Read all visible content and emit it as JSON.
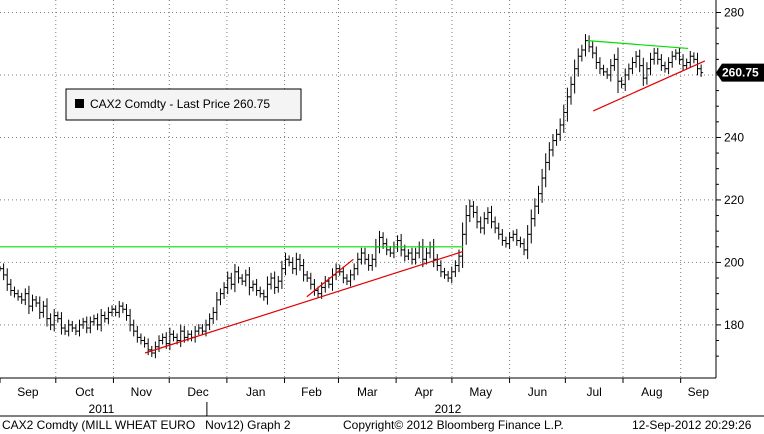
{
  "chart_data": {
    "type": "bar",
    "subtype": "ohlc",
    "legend_label": "CAX2 Comdty - Last Price 260.75",
    "last_price_label": "260.75",
    "last_price": 260.75,
    "ylim": [
      163,
      284
    ],
    "y_ticks": [
      180,
      200,
      220,
      240,
      260,
      280
    ],
    "y_tick_labels": [
      "180",
      "200",
      "220",
      "240",
      "260",
      "280"
    ],
    "months": [
      "Sep",
      "Oct",
      "Nov",
      "Dec",
      "Jan",
      "Feb",
      "Mar",
      "Apr",
      "May",
      "Jun",
      "Jul",
      "Aug",
      "Sep"
    ],
    "years": [
      {
        "label": "2011",
        "month_index": 2
      },
      {
        "label": "2012",
        "month_index": 8
      }
    ],
    "bars_start_date": "2011-09-01",
    "grid": true,
    "series_closes": [
      198,
      196,
      193,
      191,
      190,
      189,
      188,
      190,
      186,
      188,
      187,
      184,
      186,
      182,
      180,
      183,
      182,
      179,
      178,
      180,
      179,
      178,
      180,
      181,
      179,
      181,
      182,
      180,
      183,
      182,
      184,
      185,
      184,
      186,
      185,
      183,
      180,
      178,
      176,
      175,
      174,
      172,
      171,
      173,
      175,
      176,
      174,
      177,
      176,
      175,
      178,
      176,
      177,
      176,
      178,
      179,
      178,
      180,
      182,
      184,
      188,
      190,
      192,
      195,
      193,
      197,
      195,
      194,
      196,
      192,
      193,
      191,
      190,
      189,
      193,
      195,
      192,
      194,
      198,
      201,
      200,
      198,
      201,
      199,
      196,
      195,
      193,
      191,
      190,
      192,
      194,
      193,
      196,
      198,
      197,
      195,
      194,
      196,
      198,
      201,
      203,
      201,
      199,
      201,
      205,
      208,
      206,
      204,
      203,
      205,
      207,
      204,
      202,
      203,
      201,
      203,
      205,
      201,
      203,
      205,
      201,
      199,
      197,
      196,
      195,
      197,
      199,
      202,
      209,
      215,
      218,
      216,
      213,
      211,
      214,
      216,
      213,
      211,
      209,
      207,
      206,
      208,
      209,
      207,
      206,
      204,
      209,
      214,
      218,
      222,
      227,
      232,
      236,
      239,
      241,
      244,
      248,
      253,
      257,
      262,
      266,
      268,
      271,
      269,
      267,
      264,
      262,
      261,
      260,
      263,
      265,
      258,
      257,
      260,
      262,
      264,
      266,
      263,
      259,
      262,
      265,
      267,
      265,
      263,
      262,
      264,
      266,
      267,
      265,
      263,
      264,
      266,
      265,
      262,
      260.75
    ],
    "trendlines": [
      {
        "color": "#00e000",
        "from": {
          "date": "2011-09-01",
          "price": 205
        },
        "to": {
          "date": "2012-05-07",
          "price": 205
        }
      },
      {
        "color": "#e00000",
        "from": {
          "date": "2011-11-18",
          "price": 171
        },
        "to": {
          "date": "2012-05-07",
          "price": 203.5
        }
      },
      {
        "color": "#e00000",
        "from": {
          "date": "2012-02-13",
          "price": 189
        },
        "to": {
          "date": "2012-03-09",
          "price": 201
        }
      },
      {
        "color": "#00e000",
        "from": {
          "date": "2012-07-13",
          "price": 271
        },
        "to": {
          "date": "2012-09-05",
          "price": 268.5
        }
      },
      {
        "color": "#e00000",
        "from": {
          "date": "2012-07-16",
          "price": 248.5
        },
        "to": {
          "date": "2012-09-14",
          "price": 264.5
        }
      }
    ]
  },
  "footer": {
    "left": "CAX2 Comdty (MILL WHEAT EURO   Nov12) Graph 2",
    "center": "Copyright© 2012 Bloomberg Finance L.P.",
    "right": "12-Sep-2012 20:29:26"
  },
  "colors": {
    "bars": "#000000",
    "up_trend": "#e00000",
    "resistance": "#00e000",
    "grid": "#7f7f7f"
  }
}
